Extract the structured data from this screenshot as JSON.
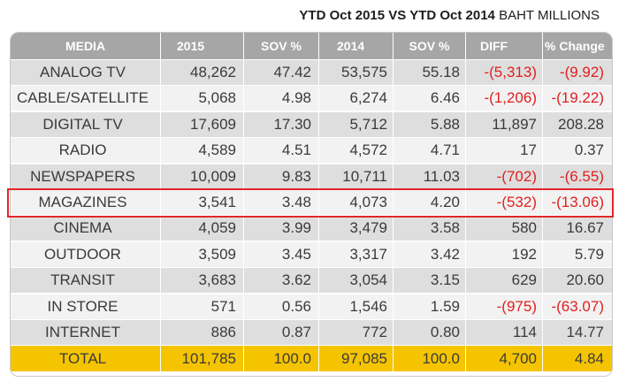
{
  "heading": {
    "bold": "YTD Oct 2015 VS YTD Oct 2014",
    "unit": " BAHT MILLIONS"
  },
  "chart_data": {
    "type": "table",
    "title": "YTD Oct 2015 VS YTD Oct 2014",
    "unit": "BAHT MILLIONS",
    "columns": [
      "MEDIA",
      "2015",
      "SOV %",
      "2014",
      "SOV %",
      "DIFF",
      "% Change"
    ],
    "rows": [
      [
        "ANALOG  TV",
        "48,262",
        "47.42",
        "53,575",
        "55.18",
        "-(5,313)",
        "-(9.92)"
      ],
      [
        "CABLE/SATELLITE",
        "5,068",
        "4.98",
        "6,274",
        "6.46",
        "-(1,206)",
        "-(19.22)"
      ],
      [
        "DIGITAL TV",
        "17,609",
        "17.30",
        "5,712",
        "5.88",
        "11,897",
        "208.28"
      ],
      [
        "RADIO",
        "4,589",
        "4.51",
        "4,572",
        "4.71",
        "17",
        "0.37"
      ],
      [
        "NEWSPAPERS",
        "10,009",
        "9.83",
        "10,711",
        "11.03",
        "-(702)",
        "-(6.55)"
      ],
      [
        "MAGAZINES",
        "3,541",
        "3.48",
        "4,073",
        "4.20",
        "-(532)",
        "-(13.06)"
      ],
      [
        "CINEMA",
        "4,059",
        "3.99",
        "3,479",
        "3.58",
        "580",
        "16.67"
      ],
      [
        "OUTDOOR",
        "3,509",
        "3.45",
        "3,317",
        "3.42",
        "192",
        "5.79"
      ],
      [
        "TRANSIT",
        "3,683",
        "3.62",
        "3,054",
        "3.15",
        "629",
        "20.60"
      ],
      [
        "IN STORE",
        "571",
        "0.56",
        "1,546",
        "1.59",
        "-(975)",
        "-(63.07)"
      ],
      [
        "INTERNET",
        "886",
        "0.87",
        "772",
        "0.80",
        "114",
        "14.77"
      ]
    ],
    "total": [
      "TOTAL",
      "101,785",
      "100.0",
      "97,085",
      "100.0",
      "4,700",
      "4.84"
    ],
    "highlighted_row": "MAGAZINES",
    "colors": {
      "header_bg": "#a6a6a6",
      "row_shade": "#dedede",
      "row_light": "#f2f2f2",
      "total_bg": "#f5c400",
      "negative_text": "#e0201f",
      "highlight_border": "#e3262a"
    }
  }
}
